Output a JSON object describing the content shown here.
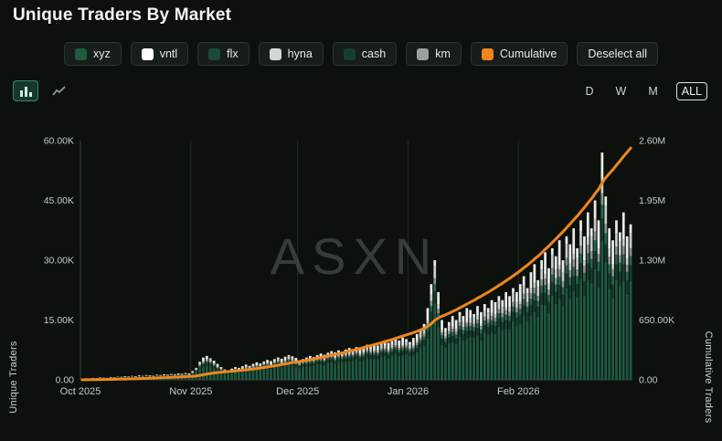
{
  "title": "Unique Traders By Market",
  "watermark": "ASXN",
  "legend": {
    "items": [
      {
        "label": "xyz",
        "color": "#1e5b41"
      },
      {
        "label": "vntl",
        "color": "#ffffff"
      },
      {
        "label": "flx",
        "color": "#1a4a35"
      },
      {
        "label": "hyna",
        "color": "#d2d7d3"
      },
      {
        "label": "cash",
        "color": "#153f2d"
      },
      {
        "label": "km",
        "color": "#9aa19c"
      },
      {
        "label": "Cumulative",
        "color": "#f0861c"
      }
    ],
    "deselect_label": "Deselect all"
  },
  "toolbar": {
    "chart_types": [
      {
        "name": "bar-chart-icon",
        "selected": true
      },
      {
        "name": "line-chart-icon",
        "selected": false
      }
    ],
    "ranges": [
      "D",
      "W",
      "M",
      "ALL"
    ],
    "selected_range": "ALL"
  },
  "axes": {
    "left_label": "Unique Traders",
    "right_label": "Cumulative Traders",
    "left_ticks": [
      "0.00",
      "15.00K",
      "30.00K",
      "45.00K",
      "60.00K"
    ],
    "right_ticks": [
      "0.00",
      "650.00K",
      "1.30M",
      "1.95M",
      "2.60M"
    ],
    "x_ticks": [
      "Oct 2025",
      "Nov 2025",
      "Dec 2025",
      "Jan 2026",
      "Feb 2026"
    ]
  },
  "chart_data": {
    "type": "bar",
    "stacked": true,
    "title": "Unique Traders By Market",
    "xlabel": "",
    "ylabel_left": "Unique Traders",
    "ylabel_right": "Cumulative Traders",
    "ylim_left": [
      0,
      60000
    ],
    "ylim_right": [
      0,
      2600000
    ],
    "grid": "vertical-month-lines",
    "legend_position": "top",
    "x_start": "Oct 2025 (daily bars)",
    "month_tick_day_offsets": [
      0,
      31,
      61,
      92,
      123
    ],
    "series_names": [
      "xyz",
      "vntl",
      "flx",
      "hyna",
      "cash",
      "km"
    ],
    "series_colors": {
      "xyz": "#1e5b41",
      "cash": "#153f2d",
      "flx": "#26684c",
      "km": "#8a928d",
      "hyna": "#c9cdc9",
      "vntl": "#e9ece9"
    },
    "stack_order_bottom_to_top": [
      "xyz",
      "cash",
      "flx",
      "km",
      "hyna",
      "vntl"
    ],
    "base_stack_fractions": {
      "xyz": 0.58,
      "cash": 0.1,
      "flx": 0.06,
      "km": 0.05,
      "hyna": 0.07,
      "vntl": 0.14
    },
    "bar_totals": [
      300,
      400,
      350,
      500,
      450,
      600,
      550,
      500,
      700,
      650,
      800,
      750,
      900,
      850,
      1000,
      900,
      1100,
      1000,
      1200,
      1100,
      1000,
      1300,
      1200,
      1400,
      1300,
      1500,
      1400,
      1600,
      1500,
      1700,
      1600,
      2200,
      3000,
      4500,
      5600,
      6000,
      5400,
      4800,
      4000,
      3200,
      2600,
      2400,
      2800,
      3200,
      3000,
      3400,
      3800,
      3500,
      4000,
      4400,
      4100,
      4600,
      5000,
      4700,
      5200,
      5600,
      5300,
      5800,
      6200,
      5900,
      5500,
      4800,
      5200,
      5600,
      6000,
      5700,
      6200,
      6600,
      6300,
      6800,
      7200,
      6900,
      7400,
      7000,
      7600,
      8000,
      7700,
      8200,
      7900,
      8400,
      8800,
      8500,
      9000,
      8600,
      9200,
      9600,
      9300,
      9800,
      10200,
      9900,
      10600,
      10200,
      9500,
      10500,
      11500,
      12500,
      14000,
      18000,
      24000,
      30000,
      22000,
      15000,
      13000,
      14500,
      16000,
      15000,
      17000,
      16000,
      18000,
      17500,
      16500,
      18500,
      17000,
      19000,
      18000,
      20000,
      19500,
      21000,
      20000,
      22000,
      21000,
      23000,
      22000,
      24000,
      26000,
      23000,
      27000,
      29000,
      25000,
      30000,
      32000,
      28000,
      33000,
      31000,
      35000,
      30000,
      36000,
      34000,
      38000,
      33000,
      40000,
      36000,
      42000,
      38000,
      45000,
      40000,
      57000,
      46000,
      38000,
      35000,
      40000,
      37000,
      42000,
      36000,
      39000
    ],
    "cumulative": {
      "name": "Cumulative",
      "color": "#f0861c",
      "end_value": 2520000
    }
  },
  "theme": {
    "background": "#0c110e",
    "axis_line": "#3b433e",
    "grid_line": "#222925",
    "tick_text": "#c3ccc6",
    "accent_orange": "#f0861c"
  }
}
